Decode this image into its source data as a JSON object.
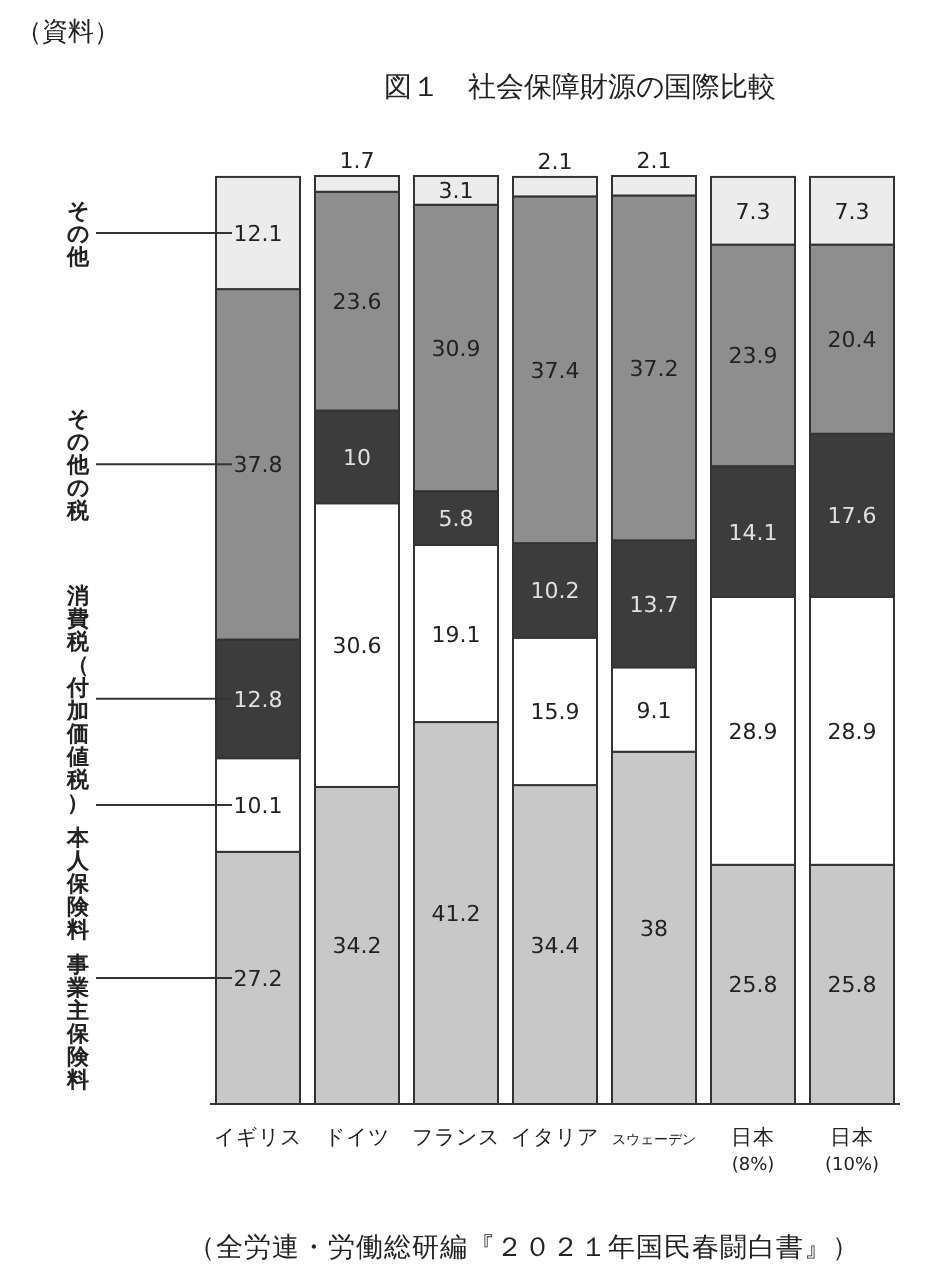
{
  "chart_data": {
    "type": "bar",
    "stacked": true,
    "data_labels": true,
    "legend": "left",
    "title": "図１　社会保障財源の国際比較",
    "annotations": [
      "（資料）",
      "（全労連・労働総研編『２０２１年国民春闘白書』）"
    ],
    "categories": [
      "イギリス",
      "ドイツ",
      "フランス",
      "イタリア",
      "スウェーデン",
      "日本\n(8%)",
      "日本\n(10%)"
    ],
    "series": [
      {
        "name": "事業主保険料",
        "color": "#c8c8c8",
        "values": [
          27.2,
          34.2,
          41.2,
          34.4,
          38.0,
          25.8,
          25.8
        ]
      },
      {
        "name": "本人保険料",
        "color": "#ffffff",
        "values": [
          10.1,
          30.6,
          19.1,
          15.9,
          9.1,
          28.9,
          28.9
        ]
      },
      {
        "name": "消費税（付加価値税）",
        "color": "#3c3c3c",
        "values": [
          12.8,
          10.0,
          5.8,
          10.2,
          13.7,
          14.1,
          17.6
        ]
      },
      {
        "name": "その他の税",
        "color": "#8e8e8e",
        "values": [
          37.8,
          23.6,
          30.9,
          37.4,
          37.2,
          23.9,
          20.4
        ]
      },
      {
        "name": "その他",
        "color": "#ececec",
        "values": [
          12.1,
          1.7,
          3.1,
          2.1,
          2.1,
          7.3,
          7.3
        ]
      }
    ]
  }
}
